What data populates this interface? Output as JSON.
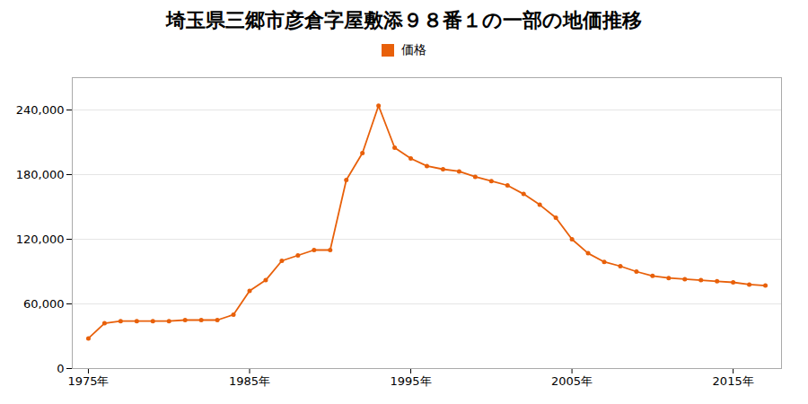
{
  "chart_data": {
    "type": "line",
    "title": "埼玉県三郷市彦倉字屋敷添９８番１の一部の地価推移",
    "x": [
      1975,
      1976,
      1977,
      1978,
      1979,
      1980,
      1981,
      1982,
      1983,
      1984,
      1985,
      1986,
      1987,
      1988,
      1989,
      1990,
      1991,
      1992,
      1993,
      1994,
      1995,
      1996,
      1997,
      1998,
      1999,
      2000,
      2001,
      2002,
      2003,
      2004,
      2005,
      2006,
      2007,
      2008,
      2009,
      2010,
      2011,
      2012,
      2013,
      2014,
      2015,
      2016,
      2017
    ],
    "series": [
      {
        "name": "価格",
        "color": "#e8600a",
        "marker": "circle",
        "values": [
          28000,
          42000,
          44000,
          44000,
          44000,
          44000,
          45000,
          45000,
          45000,
          50000,
          72000,
          82000,
          100000,
          105000,
          110000,
          110000,
          175000,
          200000,
          244000,
          205000,
          195000,
          188000,
          185000,
          183000,
          178000,
          174000,
          170000,
          162000,
          152000,
          140000,
          120000,
          107000,
          99000,
          95000,
          90000,
          86000,
          84000,
          83000,
          82000,
          81000,
          80000,
          78000,
          77000
        ]
      }
    ],
    "xlim": [
      1974,
      2018
    ],
    "xticks": [
      {
        "value": 1975,
        "label": "1975年"
      },
      {
        "value": 1985,
        "label": "1985年"
      },
      {
        "value": 1995,
        "label": "1995年"
      },
      {
        "value": 2005,
        "label": "2005年"
      },
      {
        "value": 2015,
        "label": "2015年"
      }
    ],
    "ylim": [
      0,
      270000
    ],
    "yticks": [
      0,
      {
        "value": 60000,
        "label": "60,000"
      },
      {
        "value": 120000,
        "label": "120,000"
      },
      {
        "value": 180000,
        "label": "180,000"
      },
      {
        "value": 240000,
        "label": "240,000"
      }
    ],
    "grid": "y",
    "legend": "top"
  }
}
